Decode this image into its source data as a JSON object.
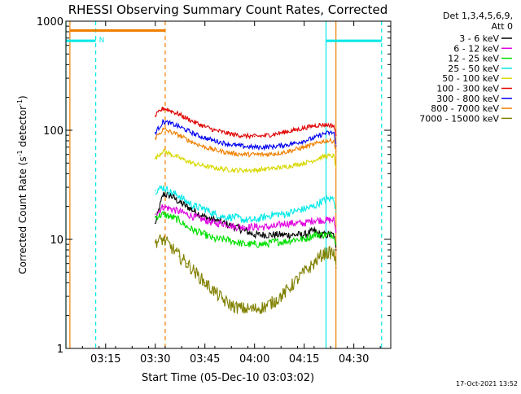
{
  "chart_data": {
    "type": "line",
    "title": "RHESSI Observing Summary Count Rates, Corrected",
    "xlabel": "Start Time (05-Dec-10 03:03:02)",
    "ylabel_main": "Corrected Count Rate (s",
    "ylabel_sup1": "-1",
    "ylabel_mid": " detector",
    "ylabel_sup2": "-1",
    "ylabel_end": ")",
    "yscale": "log",
    "ylim": [
      1,
      1000
    ],
    "xlim_minutes": [
      3.05,
      4.686
    ],
    "x_ticks": [
      {
        "label": "03:15",
        "value": 3.25
      },
      {
        "label": "03:30",
        "value": 3.5
      },
      {
        "label": "03:45",
        "value": 3.75
      },
      {
        "label": "04:00",
        "value": 4.0
      },
      {
        "label": "04:15",
        "value": 4.25
      },
      {
        "label": "04:30",
        "value": 4.5
      }
    ],
    "y_ticks": [
      {
        "label": "1",
        "value": 1
      },
      {
        "label": "10",
        "value": 10
      },
      {
        "label": "100",
        "value": 100
      },
      {
        "label": "1000",
        "value": 1000
      }
    ],
    "legend_header": [
      "Det 1,3,4,5,6,9,",
      "Att 0"
    ],
    "legend_placement": "top-right",
    "series": [
      {
        "name": "3 - 6 keV",
        "color": "#000000",
        "x": [
          3.5,
          3.54,
          3.58,
          3.62,
          3.66,
          3.7,
          3.75,
          3.8,
          3.85,
          3.9,
          3.95,
          4.0,
          4.05,
          4.1,
          4.15,
          4.2,
          4.25,
          4.3,
          4.33,
          4.36,
          4.4,
          4.41
        ],
        "y": [
          14,
          26,
          25,
          22,
          20,
          18,
          16,
          15,
          14,
          13,
          12,
          11,
          11,
          11,
          11,
          11,
          11,
          12,
          11,
          11,
          11,
          8
        ]
      },
      {
        "name": "6 - 12 keV",
        "color": "#e000e0",
        "x": [
          3.5,
          3.54,
          3.58,
          3.62,
          3.66,
          3.7,
          3.75,
          3.8,
          3.85,
          3.9,
          3.95,
          4.0,
          4.05,
          4.1,
          4.15,
          4.2,
          4.25,
          4.3,
          4.33,
          4.36,
          4.4,
          4.41
        ],
        "y": [
          17,
          20,
          19,
          18,
          17,
          16,
          15,
          14,
          14,
          13,
          13,
          13,
          13,
          13,
          14,
          14,
          14,
          15,
          15,
          15,
          15,
          12
        ]
      },
      {
        "name": "12 - 25 keV",
        "color": "#00e000",
        "x": [
          3.5,
          3.54,
          3.58,
          3.62,
          3.66,
          3.7,
          3.75,
          3.8,
          3.85,
          3.9,
          3.95,
          4.0,
          4.05,
          4.1,
          4.15,
          4.2,
          4.25,
          4.3,
          4.33,
          4.36,
          4.4,
          4.41
        ],
        "y": [
          16,
          17,
          16,
          15,
          13,
          12,
          11,
          10,
          10,
          9.5,
          9,
          9,
          9,
          9.5,
          9.5,
          10,
          10,
          11,
          11,
          11,
          11,
          9
        ]
      },
      {
        "name": "25 - 50 keV",
        "color": "#00e8e8",
        "x": [
          3.5,
          3.54,
          3.58,
          3.62,
          3.66,
          3.7,
          3.75,
          3.8,
          3.85,
          3.9,
          3.95,
          4.0,
          4.05,
          4.1,
          4.15,
          4.2,
          4.25,
          4.3,
          4.33,
          4.36,
          4.4,
          4.41
        ],
        "y": [
          28,
          30,
          27,
          25,
          22,
          20,
          19,
          17,
          16,
          16,
          15,
          15,
          16,
          17,
          17,
          18,
          19,
          20,
          22,
          23,
          24,
          18
        ]
      },
      {
        "name": "50 - 100 keV",
        "color": "#d8d800",
        "x": [
          3.5,
          3.54,
          3.58,
          3.62,
          3.66,
          3.7,
          3.75,
          3.8,
          3.85,
          3.9,
          3.95,
          4.0,
          4.05,
          4.1,
          4.15,
          4.2,
          4.25,
          4.3,
          4.33,
          4.36,
          4.4,
          4.41
        ],
        "y": [
          55,
          65,
          60,
          56,
          52,
          49,
          47,
          45,
          44,
          43,
          43,
          43,
          44,
          45,
          46,
          48,
          50,
          53,
          56,
          58,
          58,
          46
        ]
      },
      {
        "name": "100 - 300 keV",
        "color": "#e00000",
        "x": [
          3.5,
          3.54,
          3.58,
          3.62,
          3.66,
          3.7,
          3.75,
          3.8,
          3.85,
          3.9,
          3.95,
          4.0,
          4.05,
          4.1,
          4.15,
          4.2,
          4.25,
          4.3,
          4.33,
          4.36,
          4.4,
          4.41
        ],
        "y": [
          135,
          160,
          150,
          140,
          128,
          118,
          108,
          100,
          95,
          91,
          89,
          88,
          89,
          92,
          96,
          100,
          105,
          110,
          112,
          112,
          110,
          90
        ]
      },
      {
        "name": "300 - 800 keV",
        "color": "#0000f0",
        "x": [
          3.5,
          3.54,
          3.58,
          3.62,
          3.66,
          3.7,
          3.75,
          3.8,
          3.85,
          3.9,
          3.95,
          4.0,
          4.05,
          4.1,
          4.15,
          4.2,
          4.25,
          4.3,
          4.33,
          4.36,
          4.4,
          4.41
        ],
        "y": [
          95,
          120,
          115,
          108,
          100,
          92,
          85,
          80,
          76,
          73,
          71,
          70,
          70,
          71,
          73,
          76,
          80,
          85,
          90,
          94,
          95,
          72
        ]
      },
      {
        "name": "800 - 7000 keV",
        "color": "#f08000",
        "x": [
          3.5,
          3.54,
          3.58,
          3.62,
          3.66,
          3.7,
          3.75,
          3.8,
          3.85,
          3.9,
          3.95,
          4.0,
          4.05,
          4.1,
          4.15,
          4.2,
          4.25,
          4.3,
          4.33,
          4.36,
          4.4,
          4.41
        ],
        "y": [
          85,
          102,
          96,
          90,
          82,
          76,
          70,
          66,
          63,
          61,
          60,
          60,
          60,
          61,
          63,
          66,
          70,
          74,
          78,
          80,
          80,
          64
        ]
      },
      {
        "name": "7000 - 15000 keV",
        "color": "#808000",
        "x": [
          3.5,
          3.54,
          3.58,
          3.62,
          3.66,
          3.7,
          3.75,
          3.8,
          3.85,
          3.9,
          3.95,
          4.0,
          4.05,
          4.1,
          4.15,
          4.2,
          4.25,
          4.3,
          4.33,
          4.36,
          4.4,
          4.41
        ],
        "y": [
          9.5,
          10,
          8.5,
          7,
          6,
          5,
          4,
          3.3,
          2.7,
          2.4,
          2.3,
          2.3,
          2.4,
          2.7,
          3.2,
          4,
          5,
          6,
          7,
          7.5,
          7.5,
          5.5
        ]
      }
    ],
    "flags": [
      {
        "name": "night",
        "color": "#f08000",
        "x": [
          3.07,
          3.55
        ],
        "level": 820,
        "label": ""
      },
      {
        "name": "saa",
        "color": "#00e8e8",
        "x": [
          3.05,
          3.2
        ],
        "level": 660,
        "label": "N"
      },
      {
        "name": "saa2",
        "color": "#00e8e8",
        "x": [
          4.36,
          4.64
        ],
        "level": 660,
        "label": ""
      }
    ],
    "vlines": [
      {
        "x": 3.05,
        "color": "#00e8e8",
        "style": "solid"
      },
      {
        "x": 3.07,
        "color": "#f08000",
        "style": "solid"
      },
      {
        "x": 3.2,
        "color": "#00e8e8",
        "style": "dashed"
      },
      {
        "x": 3.55,
        "color": "#f08000",
        "style": "dashed"
      },
      {
        "x": 4.36,
        "color": "#00e8e8",
        "style": "solid"
      },
      {
        "x": 4.41,
        "color": "#f08000",
        "style": "solid"
      },
      {
        "x": 4.64,
        "color": "#00e8e8",
        "style": "dashed"
      }
    ]
  },
  "footer": {
    "timestamp": "17-Oct-2021 13:52"
  }
}
